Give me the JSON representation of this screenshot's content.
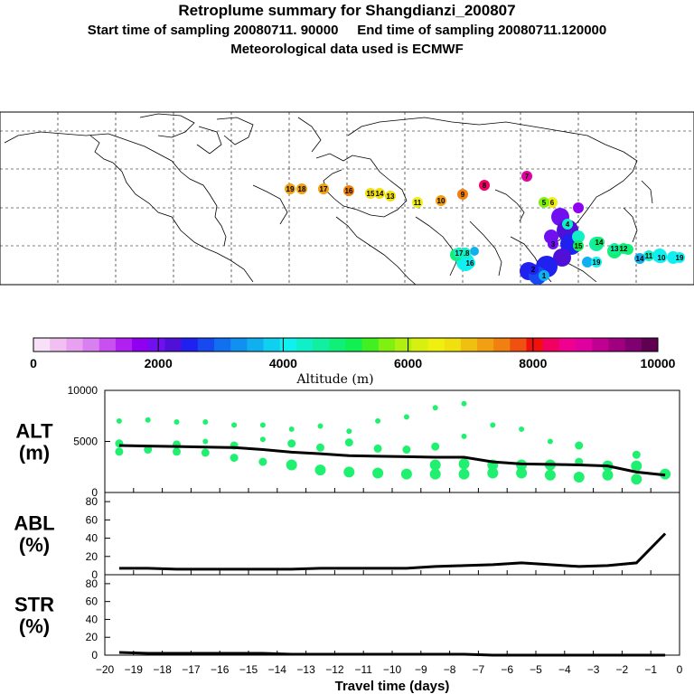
{
  "header": {
    "title": "Retroplume summary for Shangdianzi_200807",
    "sampling": "Start time of sampling 20080711. 90000     End time of sampling 20080711.120000",
    "met": "Meteorological data used is ECMWF"
  },
  "colorbar": {
    "label": "Altitude (m)",
    "ticks": [
      "0",
      "2000",
      "4000",
      "6000",
      "8000",
      "10000"
    ],
    "colors": [
      "#f8e0f8",
      "#f0c0f0",
      "#e8a0f0",
      "#d880f0",
      "#c850f0",
      "#b020f0",
      "#9000f0",
      "#7010f0",
      "#5010d8",
      "#2020f0",
      "#1848f0",
      "#1070f0",
      "#1090f0",
      "#10b0f0",
      "#10d0f0",
      "#10f0f0",
      "#10f0c8",
      "#10f0a0",
      "#10f078",
      "#10f050",
      "#40f020",
      "#80f010",
      "#b0f010",
      "#d8f010",
      "#f0f010",
      "#f0e010",
      "#f0c010",
      "#f0a010",
      "#f08010",
      "#f05010",
      "#f01010",
      "#f00060",
      "#f00090",
      "#e000a0",
      "#c00090",
      "#a00080",
      "#800070",
      "#600050"
    ]
  },
  "map_labels": [
    {
      "text": "19",
      "color": "#f0a010"
    },
    {
      "text": "18",
      "color": "#f0a010"
    },
    {
      "text": "17",
      "color": "#f0a010"
    },
    {
      "text": "16",
      "color": "#f08010"
    },
    {
      "text": "15",
      "color": "#f0e010"
    },
    {
      "text": "14",
      "color": "#f0e010"
    },
    {
      "text": "13",
      "color": "#f0e010"
    },
    {
      "text": "11",
      "color": "#f0f010"
    },
    {
      "text": "10",
      "color": "#f0a010"
    },
    {
      "text": "9",
      "color": "#f08010"
    },
    {
      "text": "8",
      "color": "#f00060"
    },
    {
      "text": "7",
      "color": "#e000a0"
    },
    {
      "text": "6",
      "color": "#f0f010"
    },
    {
      "text": "5",
      "color": "#80f010"
    },
    {
      "text": "4",
      "color": "#10f0c8"
    },
    {
      "text": "3",
      "color": "#7010f0"
    },
    {
      "text": "2",
      "color": "#2020f0"
    },
    {
      "text": "1",
      "color": "#10b0f0"
    },
    {
      "text": "14",
      "color": "#10f078"
    },
    {
      "text": "13",
      "color": "#10f0a0"
    },
    {
      "text": "12",
      "color": "#10f078"
    },
    {
      "text": "11",
      "color": "#10f0c8"
    },
    {
      "text": "10",
      "color": "#10f0f0"
    },
    {
      "text": "19",
      "color": "#10f0f0"
    },
    {
      "text": "15",
      "color": "#10f050"
    },
    {
      "text": "16",
      "color": "#10f0f0"
    },
    {
      "text": "18",
      "color": "#10f0c8"
    },
    {
      "text": "17",
      "color": "#10f0c8"
    },
    {
      "text": "14",
      "color": "#10b0f0"
    },
    {
      "text": "19",
      "color": "#10f0f0"
    }
  ],
  "chart_data": [
    {
      "type": "line",
      "ylabel": "ALT\n(m)",
      "ylabel_lines": [
        "ALT",
        "(m)"
      ],
      "xlabel": "Travel time (days)",
      "xlim": [
        -20,
        0
      ],
      "ylim": [
        0,
        10000
      ],
      "yticks": [
        "10000",
        "5000",
        "0"
      ],
      "xticks": [
        "-20",
        "-19",
        "-18",
        "-17",
        "-16",
        "-15",
        "-14",
        "-13",
        "-12",
        "-11",
        "-10",
        "-9",
        "-8",
        "-7",
        "-6",
        "-5",
        "-4",
        "-3",
        "-2",
        "-1",
        "0"
      ],
      "x": [
        -19.5,
        -18.5,
        -17.5,
        -16.5,
        -15.5,
        -14.5,
        -13.5,
        -12.5,
        -11.5,
        -10.5,
        -9.5,
        -8.5,
        -7.5,
        -6.5,
        -5.5,
        -4.5,
        -3.5,
        -2.5,
        -1.5,
        -0.5
      ],
      "line": [
        4600,
        4550,
        4500,
        4450,
        4400,
        4200,
        3950,
        3800,
        3600,
        3550,
        3500,
        3450,
        3450,
        3000,
        2800,
        2750,
        2700,
        2600,
        2000,
        1700
      ],
      "dot_clusters": [
        {
          "x": -19.5,
          "y": [
            7000,
            4800,
            4000
          ]
        },
        {
          "x": -18.5,
          "y": [
            7100,
            4200
          ]
        },
        {
          "x": -17.5,
          "y": [
            6900,
            4700,
            4000
          ]
        },
        {
          "x": -16.5,
          "y": [
            6900,
            5000,
            3900
          ]
        },
        {
          "x": -15.5,
          "y": [
            6600,
            4600,
            3400
          ]
        },
        {
          "x": -14.5,
          "y": [
            6600,
            5200,
            3000
          ]
        },
        {
          "x": -13.5,
          "y": [
            6200,
            4800,
            2700
          ]
        },
        {
          "x": -12.5,
          "y": [
            6500,
            4400,
            2200
          ]
        },
        {
          "x": -11.5,
          "y": [
            6000,
            4900,
            2000
          ]
        },
        {
          "x": -10.5,
          "y": [
            7000,
            4300,
            1900
          ]
        },
        {
          "x": -9.5,
          "y": [
            7400,
            4200,
            1800
          ]
        },
        {
          "x": -8.5,
          "y": [
            8300,
            4500,
            2700,
            1800
          ]
        },
        {
          "x": -7.5,
          "y": [
            8700,
            5500,
            2800,
            1800
          ]
        },
        {
          "x": -6.5,
          "y": [
            6600,
            2700,
            1900
          ]
        },
        {
          "x": -5.5,
          "y": [
            6200,
            2700,
            1900
          ]
        },
        {
          "x": -4.5,
          "y": [
            5000,
            2700,
            1700
          ]
        },
        {
          "x": -3.5,
          "y": [
            4600,
            3000,
            1500
          ]
        },
        {
          "x": -2.5,
          "y": [
            2600,
            1700
          ]
        },
        {
          "x": -1.5,
          "y": [
            3700,
            2600,
            1300
          ]
        },
        {
          "x": -0.5,
          "y": [
            1800
          ]
        }
      ]
    },
    {
      "type": "line",
      "ylabel_lines": [
        "ABL",
        "(%)"
      ],
      "ylim": [
        0,
        90
      ],
      "yticks": [
        "80",
        "60",
        "40",
        "20",
        "0"
      ],
      "x": [
        -19.5,
        -18.5,
        -17.5,
        -16.5,
        -15.5,
        -14.5,
        -13.5,
        -12.5,
        -11.5,
        -10.5,
        -9.5,
        -8.5,
        -7.5,
        -6.5,
        -5.5,
        -4.5,
        -3.5,
        -2.5,
        -1.5,
        -0.5
      ],
      "values": [
        7,
        7,
        6,
        6,
        6,
        6,
        6,
        7,
        7,
        7,
        7,
        9,
        10,
        11,
        13,
        11,
        9,
        10,
        13,
        45
      ]
    },
    {
      "type": "line",
      "ylabel_lines": [
        "STR",
        "(%)"
      ],
      "ylim": [
        0,
        90
      ],
      "yticks": [
        "80",
        "60",
        "40",
        "20",
        "0"
      ],
      "x": [
        -19.5,
        -18.5,
        -17.5,
        -16.5,
        -15.5,
        -14.5,
        -13.5,
        -12.5,
        -11.5,
        -10.5,
        -9.5,
        -8.5,
        -7.5,
        -6.5,
        -5.5,
        -4.5,
        -3.5,
        -2.5,
        -1.5,
        -0.5
      ],
      "values": [
        3,
        2,
        2,
        2,
        2,
        2,
        1,
        1,
        1,
        1,
        1,
        1,
        1,
        0,
        0,
        0,
        0,
        0,
        0,
        0
      ]
    }
  ]
}
